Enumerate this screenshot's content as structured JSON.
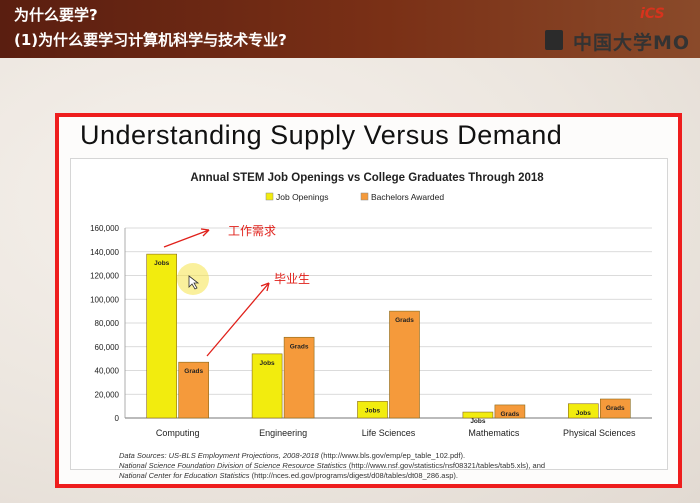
{
  "header": {
    "title_line1": "为什么要学?",
    "title_line2": "(1)为什么要学习计算机科学与技术专业?",
    "brand": "中国大学MO",
    "logo_text": "iCS"
  },
  "slide": {
    "title": "Understanding Supply Versus Demand"
  },
  "chart_data": {
    "type": "bar",
    "title": "Annual STEM Job Openings vs College Graduates Through 2018",
    "categories": [
      "Computing",
      "Engineering",
      "Life Sciences",
      "Mathematics",
      "Physical Sciences"
    ],
    "series": [
      {
        "name": "Job Openings",
        "values": [
          138000,
          54000,
          14000,
          5000,
          12000
        ],
        "color": "#f2ec0e",
        "bar_label": "Jobs"
      },
      {
        "name": "Bachelors Awarded",
        "values": [
          47000,
          68000,
          90000,
          11000,
          16000
        ],
        "color": "#f59a3b",
        "bar_label": "Grads"
      }
    ],
    "yticks": [
      "0",
      "20,000",
      "40,000",
      "60,000",
      "80,000",
      "100,000",
      "120,000",
      "140,000",
      "160,000"
    ],
    "ylim": [
      0,
      160000
    ],
    "grid": true,
    "legend_position": "top-center"
  },
  "footnote": {
    "line1_italic": "Data Sources: US-BLS Employment Projections, 2008-2018",
    "line1_rest": " (http://www.bls.gov/emp/ep_table_102.pdf).",
    "line2_italic": "National Science Foundation Division of Science Resource Statistics",
    "line2_rest": " (http://www.nsf.gov/statistics/nsf08321/tables/tab5.xls), and",
    "line3_italic": "National Center for Education Statistics",
    "line3_rest": " (http://nces.ed.gov/programs/digest/d08/tables/dt08_286.asp)."
  },
  "annotations": {
    "jobs_demand": "工作需求",
    "graduates": "毕业生"
  },
  "colors": {
    "frame": "#ee1d1d",
    "header": "#6a2814",
    "annotation": "#e0201a"
  }
}
